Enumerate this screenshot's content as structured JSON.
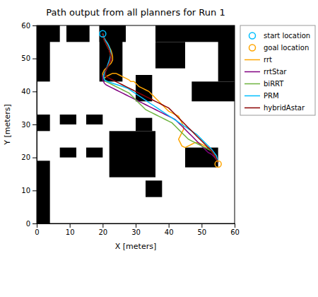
{
  "chart_data": {
    "type": "line",
    "title": "Path output from all planners for Run 1",
    "x_label": "X [meters]",
    "y_label": "Y [meters]",
    "xlim": [
      0,
      60
    ],
    "ylim": [
      0,
      60
    ],
    "xticks": [
      0,
      10,
      20,
      30,
      40,
      50,
      60
    ],
    "yticks": [
      0,
      10,
      20,
      30,
      40,
      50,
      60
    ],
    "grid": false,
    "legend": "right",
    "obstacle_color": "black",
    "obstacles": [
      [
        0,
        55,
        7,
        5
      ],
      [
        9,
        55,
        7,
        5
      ],
      [
        19,
        55,
        8,
        5
      ],
      [
        36,
        55,
        24,
        5
      ],
      [
        0,
        43,
        4,
        17
      ],
      [
        19,
        43,
        7,
        17
      ],
      [
        0,
        28,
        4,
        5
      ],
      [
        0,
        0,
        4,
        19
      ],
      [
        7,
        30,
        5,
        3
      ],
      [
        15,
        30,
        5,
        3
      ],
      [
        7,
        20,
        5,
        3
      ],
      [
        15,
        20,
        5,
        3
      ],
      [
        22,
        14,
        14,
        14
      ],
      [
        30,
        28,
        5,
        4
      ],
      [
        30,
        37,
        5,
        8
      ],
      [
        45,
        17,
        10,
        6
      ],
      [
        47,
        37,
        13,
        6
      ],
      [
        55,
        43,
        5,
        17
      ],
      [
        36,
        47,
        9,
        8
      ],
      [
        33,
        8,
        5,
        5
      ]
    ],
    "series": [
      {
        "name": "start location",
        "type": "scatter",
        "marker": "circle",
        "color": "#00BFFF",
        "x": [
          20
        ],
        "values": [
          57.5
        ]
      },
      {
        "name": "goal location",
        "type": "scatter",
        "marker": "circle",
        "color": "orange",
        "x": [
          55
        ],
        "values": [
          18
        ]
      },
      {
        "name": "rrt",
        "type": "line",
        "color": "#FFA500",
        "x": [
          20.0,
          20.3,
          20.8,
          21.5,
          22.0,
          22.5,
          22.8,
          23.0,
          23.0,
          22.5,
          21.5,
          20.5,
          20.0,
          20.0,
          20.5,
          21.0,
          22.0,
          23.0,
          24.0,
          25.0,
          26.0,
          27.0,
          28.0,
          28.5,
          29.0,
          29.5,
          30.0,
          30.5,
          31.0,
          32.0,
          33.0,
          34.0,
          34.5,
          35.0,
          35.5,
          36.0,
          36.5,
          37.0,
          37.5,
          38.0,
          39.0,
          40.0,
          41.0,
          42.0,
          43.0,
          43.5,
          44.0,
          44.5,
          44.5,
          44.0,
          43.5,
          43.0,
          43.5,
          44.0,
          45.0,
          46.0,
          47.0,
          48.0,
          49.0,
          50.0,
          51.0,
          52.0,
          53.0,
          54.0,
          55.0
        ],
        "values": [
          57.5,
          56.5,
          55.5,
          54.5,
          53.5,
          52.5,
          51.5,
          50.5,
          49.5,
          48.5,
          47.5,
          46.5,
          45.5,
          44.5,
          44.0,
          44.5,
          45.0,
          45.5,
          45.5,
          45.0,
          44.5,
          44.0,
          43.5,
          43.0,
          43.0,
          43.0,
          42.5,
          42.0,
          41.5,
          41.0,
          40.5,
          40.0,
          39.5,
          39.0,
          38.5,
          38.0,
          37.5,
          37.0,
          36.5,
          36.0,
          35.0,
          34.0,
          33.5,
          33.0,
          32.5,
          31.5,
          30.5,
          29.5,
          28.5,
          27.5,
          26.5,
          25.5,
          24.5,
          23.5,
          23.0,
          23.5,
          24.0,
          24.5,
          24.5,
          24.0,
          23.5,
          23.0,
          22.0,
          20.5,
          18.5
        ]
      },
      {
        "name": "rrtStar",
        "type": "line",
        "color": "#800080",
        "x": [
          20.0,
          20.2,
          20.5,
          21.0,
          21.5,
          22.0,
          22.3,
          22.5,
          22.5,
          22.0,
          21.5,
          21.0,
          20.5,
          20.0,
          20.0,
          20.5,
          21.0,
          22.0,
          23.0,
          24.0,
          25.0,
          26.0,
          27.0,
          28.0,
          29.0,
          30.0,
          31.0,
          32.0,
          33.0,
          34.0,
          35.0,
          36.0,
          37.0,
          38.0,
          39.0,
          40.0,
          41.0,
          42.0,
          43.0,
          44.0,
          45.0,
          46.0,
          47.0,
          48.0,
          49.0,
          50.0,
          51.0,
          52.0,
          53.0,
          54.0,
          55.0
        ],
        "values": [
          57.5,
          56.5,
          55.5,
          54.5,
          53.5,
          52.5,
          51.5,
          50.5,
          49.5,
          48.5,
          47.5,
          46.5,
          45.5,
          44.5,
          43.5,
          42.5,
          42.0,
          41.5,
          41.0,
          40.5,
          40.0,
          39.5,
          39.0,
          38.5,
          38.0,
          37.5,
          37.0,
          36.5,
          36.0,
          35.5,
          35.0,
          34.5,
          34.0,
          33.5,
          33.0,
          32.5,
          32.0,
          31.5,
          30.5,
          29.5,
          28.5,
          27.5,
          26.5,
          25.5,
          24.5,
          23.5,
          22.5,
          21.5,
          21.0,
          20.0,
          18.5
        ]
      },
      {
        "name": "biRRT",
        "type": "line",
        "color": "#6DB33F",
        "x": [
          20.0,
          20.2,
          20.5,
          21.0,
          21.5,
          22.0,
          22.3,
          22.5,
          22.3,
          22.0,
          21.5,
          21.0,
          20.5,
          20.3,
          20.5,
          21.0,
          22.0,
          23.0,
          24.0,
          25.0,
          26.0,
          27.0,
          28.0,
          29.0,
          30.0,
          31.0,
          32.0,
          33.0,
          34.0,
          35.0,
          36.0,
          37.0,
          38.0,
          39.0,
          40.0,
          41.0,
          42.0,
          43.0,
          44.0,
          45.0,
          46.0,
          47.0,
          48.0,
          49.0,
          50.0,
          51.0,
          52.0,
          53.0,
          54.0,
          55.0
        ],
        "values": [
          57.5,
          56.5,
          55.5,
          54.5,
          53.5,
          52.5,
          51.5,
          50.5,
          49.5,
          48.5,
          47.5,
          46.5,
          45.5,
          44.5,
          43.5,
          43.0,
          42.5,
          42.0,
          41.5,
          41.0,
          40.5,
          40.0,
          39.5,
          38.5,
          37.5,
          36.5,
          35.5,
          34.5,
          34.0,
          33.5,
          33.0,
          32.5,
          32.0,
          31.5,
          31.0,
          30.5,
          29.5,
          28.5,
          27.5,
          26.5,
          25.5,
          25.0,
          24.5,
          24.0,
          23.5,
          23.0,
          22.5,
          22.0,
          20.5,
          18.5
        ]
      },
      {
        "name": "PRM",
        "type": "line",
        "color": "#00BFFF",
        "x": [
          20.0,
          20.3,
          20.8,
          21.5,
          22.0,
          22.3,
          22.5,
          22.3,
          22.0,
          21.5,
          21.0,
          20.5,
          20.3,
          20.5,
          21.5,
          23.0,
          24.5,
          26.0,
          27.5,
          29.0,
          30.5,
          32.0,
          33.5,
          35.0,
          36.5,
          38.0,
          39.5,
          41.0,
          42.5,
          44.0,
          45.5,
          47.0,
          48.5,
          50.0,
          51.5,
          53.0,
          54.5,
          55.0
        ],
        "values": [
          57.5,
          56.5,
          55.5,
          54.5,
          53.5,
          52.5,
          51.5,
          50.5,
          49.5,
          48.0,
          46.5,
          45.5,
          44.5,
          43.5,
          43.0,
          42.5,
          42.0,
          41.5,
          41.0,
          40.0,
          39.0,
          38.0,
          37.0,
          36.0,
          35.0,
          34.0,
          33.0,
          32.0,
          31.0,
          30.0,
          29.0,
          28.0,
          27.0,
          25.5,
          24.0,
          22.5,
          20.5,
          18.5
        ]
      },
      {
        "name": "hybridAstar",
        "type": "line",
        "color": "#8B0000",
        "x": [
          20.0,
          20.2,
          20.5,
          21.0,
          21.5,
          22.0,
          22.3,
          22.5,
          22.3,
          22.0,
          21.5,
          21.0,
          20.8,
          21.0,
          22.0,
          23.0,
          24.0,
          25.0,
          26.0,
          27.0,
          28.0,
          29.0,
          30.0,
          31.0,
          32.0,
          33.0,
          34.0,
          35.0,
          36.0,
          37.0,
          38.0,
          39.0,
          40.0,
          41.0,
          42.0,
          43.0,
          44.0,
          45.0,
          46.0,
          47.0,
          48.0,
          49.0,
          50.0,
          51.0,
          52.0,
          53.0,
          54.0,
          55.0
        ],
        "values": [
          57.5,
          56.5,
          55.5,
          54.5,
          53.5,
          52.5,
          51.5,
          50.5,
          49.5,
          48.5,
          47.5,
          46.5,
          45.5,
          44.5,
          44.0,
          43.5,
          43.0,
          42.5,
          42.0,
          41.5,
          41.0,
          40.5,
          40.0,
          39.5,
          39.0,
          38.5,
          38.0,
          37.5,
          37.0,
          36.5,
          36.0,
          35.5,
          35.0,
          34.0,
          33.0,
          32.0,
          31.0,
          30.0,
          29.0,
          28.0,
          27.0,
          26.0,
          25.0,
          24.0,
          23.0,
          22.0,
          20.5,
          18.5
        ]
      }
    ]
  }
}
